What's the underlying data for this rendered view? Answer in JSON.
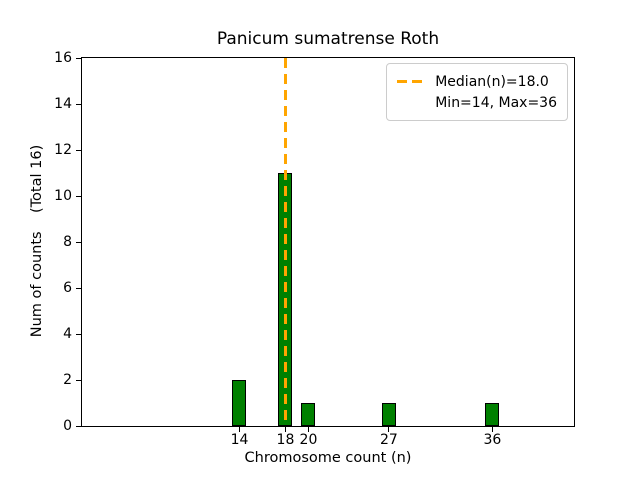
{
  "chart_data": {
    "type": "bar",
    "title": "Panicum sumatrense Roth",
    "xlabel": "Chromosome count (n)",
    "ylabel": "Num of counts    (Total 16)",
    "categories": [
      14,
      18,
      20,
      27,
      36
    ],
    "values": [
      2,
      11,
      1,
      1,
      1
    ],
    "total_counts": 16,
    "ylim": [
      0,
      16
    ],
    "y_tick_step": 2,
    "y_tick_labels": [
      "0",
      "2",
      "4",
      "6",
      "8",
      "10",
      "12",
      "14",
      "16"
    ],
    "xlim": [
      0.3,
      43.1
    ],
    "grid": "off",
    "bar_color": "#008000",
    "bar_edge_color": "#000000",
    "median_line": {
      "x": 18.0,
      "color": "#FFA500",
      "style": "dashed"
    },
    "legend": {
      "position": "upper-right",
      "entries": [
        {
          "sample": "orange-dashed-line",
          "label": "Median(n)=18.0"
        },
        {
          "sample": null,
          "label": "Min=14, Max=36"
        }
      ]
    }
  }
}
